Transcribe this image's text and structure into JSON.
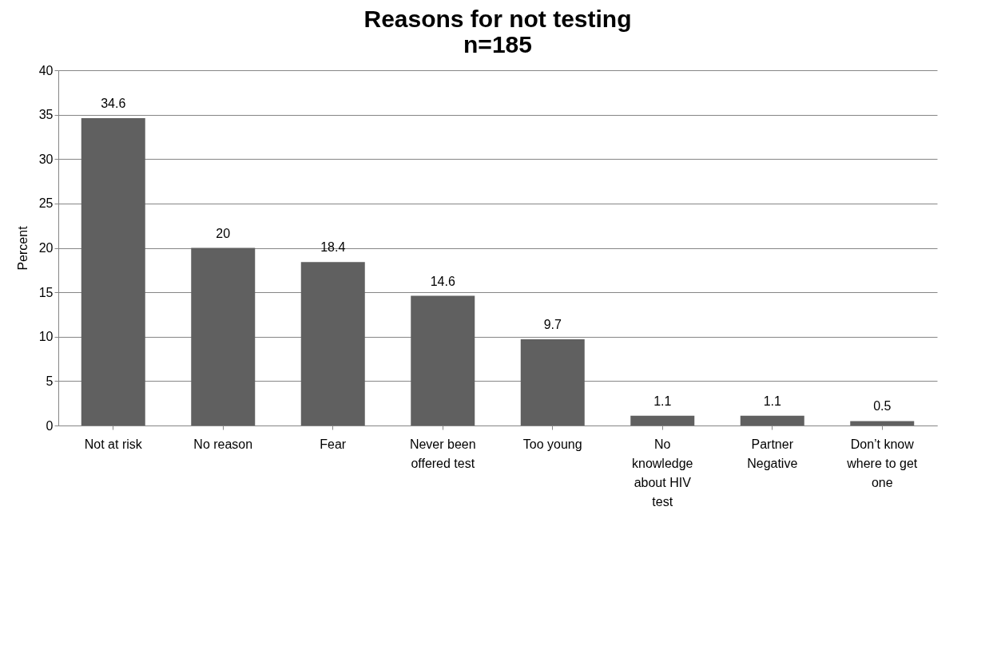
{
  "chart_data": {
    "type": "bar",
    "title": "Reasons for not testing",
    "subtitle": "n=185",
    "ylabel": "Percent",
    "categories": [
      "Not at risk",
      "No reason",
      "Fear",
      "Never been offered test",
      "Too young",
      "No knowledge about HIV test",
      "Partner Negative",
      "Don’t know where to get one"
    ],
    "values": [
      34.6,
      20,
      18.4,
      14.6,
      9.7,
      1.1,
      1.1,
      0.5
    ],
    "color": "#606060",
    "ylim": [
      0,
      40
    ],
    "yticks": [
      0,
      5,
      10,
      15,
      20,
      25,
      30,
      35,
      40
    ],
    "grid": "y",
    "data_labels": true
  }
}
